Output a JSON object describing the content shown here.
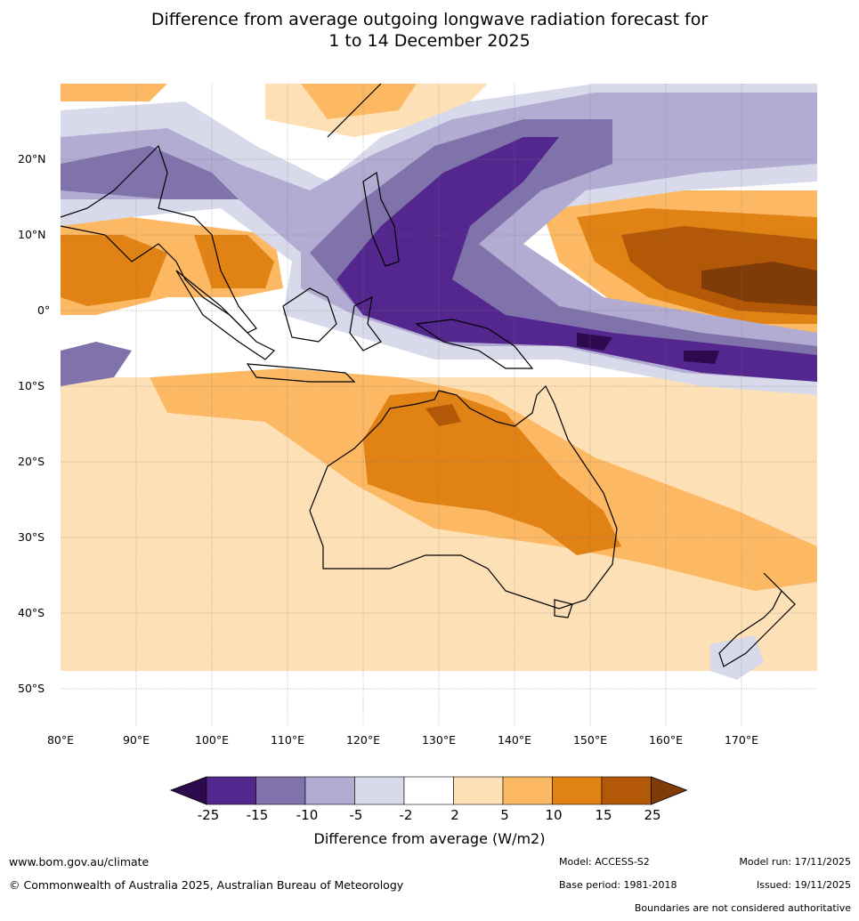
{
  "title": {
    "line1": "Difference from average outgoing longwave radiation forecast for",
    "line2": "1 to 14 December 2025"
  },
  "map": {
    "lat_labels": [
      "20°N",
      "10°N",
      "0°",
      "10°S",
      "20°S",
      "30°S",
      "40°S",
      "50°S"
    ],
    "lon_labels": [
      "80°E",
      "90°E",
      "100°E",
      "110°E",
      "120°E",
      "130°E",
      "140°E",
      "150°E",
      "160°E",
      "170°E"
    ],
    "lon_range": [
      80,
      180
    ],
    "lat_range": [
      -55,
      30
    ]
  },
  "colorbar": {
    "labels": [
      "-25",
      "-15",
      "-10",
      "-5",
      "-2",
      "2",
      "5",
      "10",
      "15",
      "25"
    ],
    "colors": [
      "#2d0a4e",
      "#54278f",
      "#8073ac",
      "#b2abd2",
      "#d8daeb",
      "#ffffff",
      "#fee0b6",
      "#fdb863",
      "#e08214",
      "#b35806",
      "#7f3b08"
    ],
    "title": "Difference from average (W/m2)"
  },
  "footer": {
    "url": "www.bom.gov.au/climate",
    "copyright": "© Commonwealth of Australia 2025, Australian Bureau of Meteorology",
    "model": "Model: ACCESS-S2",
    "base_period": "Base period: 1981-2018",
    "model_run": "Model run: 17/11/2025",
    "issued": "Issued: 19/11/2025",
    "boundaries": "Boundaries are not considered authoritative"
  }
}
